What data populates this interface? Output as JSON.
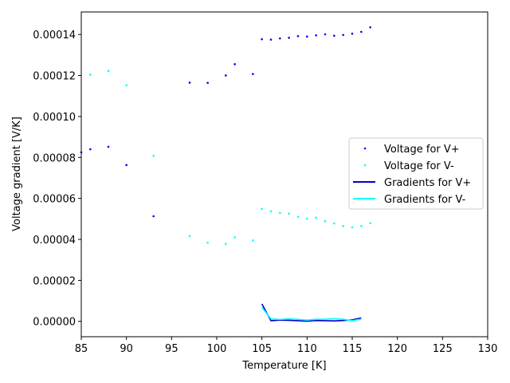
{
  "chart_data": {
    "type": "scatter",
    "title": "",
    "xlabel": "Temperature [K]",
    "ylabel": "Voltage gradient [V/K]",
    "xlim": [
      85,
      130
    ],
    "ylim": [
      -7.5e-06,
      0.000151
    ],
    "xticks": [
      85,
      90,
      95,
      100,
      105,
      110,
      115,
      120,
      125,
      130
    ],
    "xtick_labels": [
      "85",
      "90",
      "95",
      "100",
      "105",
      "110",
      "115",
      "120",
      "125",
      "130"
    ],
    "yticks": [
      0,
      2e-05,
      4e-05,
      6e-05,
      8e-05,
      0.0001,
      0.00012,
      0.00014
    ],
    "ytick_labels": [
      "0.00000",
      "0.00002",
      "0.00004",
      "0.00006",
      "0.00008",
      "0.00010",
      "0.00012",
      "0.00014"
    ],
    "grid": false,
    "legend_position": "center-right",
    "series": [
      {
        "name": "Voltage for V+",
        "kind": "scatter",
        "color": "#0000ff",
        "x": [
          85,
          86,
          88,
          90,
          93,
          97,
          99,
          101,
          102,
          104,
          105,
          106,
          107,
          108,
          109,
          110,
          111,
          112,
          113,
          114,
          115,
          116,
          117
        ],
        "y": [
          8.25e-05,
          8.4e-05,
          8.52e-05,
          7.63e-05,
          5.13e-05,
          0.0001165,
          0.0001164,
          0.00012,
          0.0001255,
          0.0001207,
          0.0001377,
          0.0001375,
          0.0001381,
          0.0001384,
          0.0001392,
          0.000139,
          0.0001396,
          0.0001401,
          0.0001394,
          0.0001398,
          0.0001404,
          0.0001413,
          0.0001435
        ]
      },
      {
        "name": "Voltage for V-",
        "kind": "scatter",
        "color": "#00ffff",
        "x": [
          86,
          88,
          90,
          93,
          97,
          99,
          101,
          102,
          104,
          105,
          106,
          107,
          108,
          109,
          110,
          111,
          112,
          113,
          114,
          115,
          116,
          117
        ],
        "y": [
          0.0001204,
          0.0001222,
          0.0001152,
          8.08e-05,
          4.16e-05,
          3.84e-05,
          3.78e-05,
          4.1e-05,
          3.95e-05,
          5.49e-05,
          5.37e-05,
          5.29e-05,
          5.26e-05,
          5.1e-05,
          5.01e-05,
          5.06e-05,
          4.89e-05,
          4.78e-05,
          4.65e-05,
          4.59e-05,
          4.65e-05,
          4.79e-05
        ]
      },
      {
        "name": "Gradients for V+",
        "kind": "line",
        "color": "#0000cd",
        "x": [
          105,
          106,
          107,
          108,
          109,
          110,
          111,
          112,
          113,
          114,
          115,
          116
        ],
        "y": [
          8.5e-06,
          3e-07,
          6e-07,
          5e-07,
          3e-07,
          1e-07,
          4e-07,
          3e-07,
          2e-07,
          4e-07,
          7e-07,
          1.7e-06
        ]
      },
      {
        "name": "Gradients for V-",
        "kind": "line",
        "color": "#00ffff",
        "x": [
          105,
          106,
          107,
          108,
          109,
          110,
          111,
          112,
          113,
          114,
          115,
          116
        ],
        "y": [
          6.8e-06,
          1.2e-06,
          9e-07,
          1.2e-06,
          1e-06,
          6e-07,
          1e-06,
          1.1e-06,
          1.3e-06,
          1e-06,
          3e-07,
          1.1e-06
        ]
      }
    ]
  }
}
